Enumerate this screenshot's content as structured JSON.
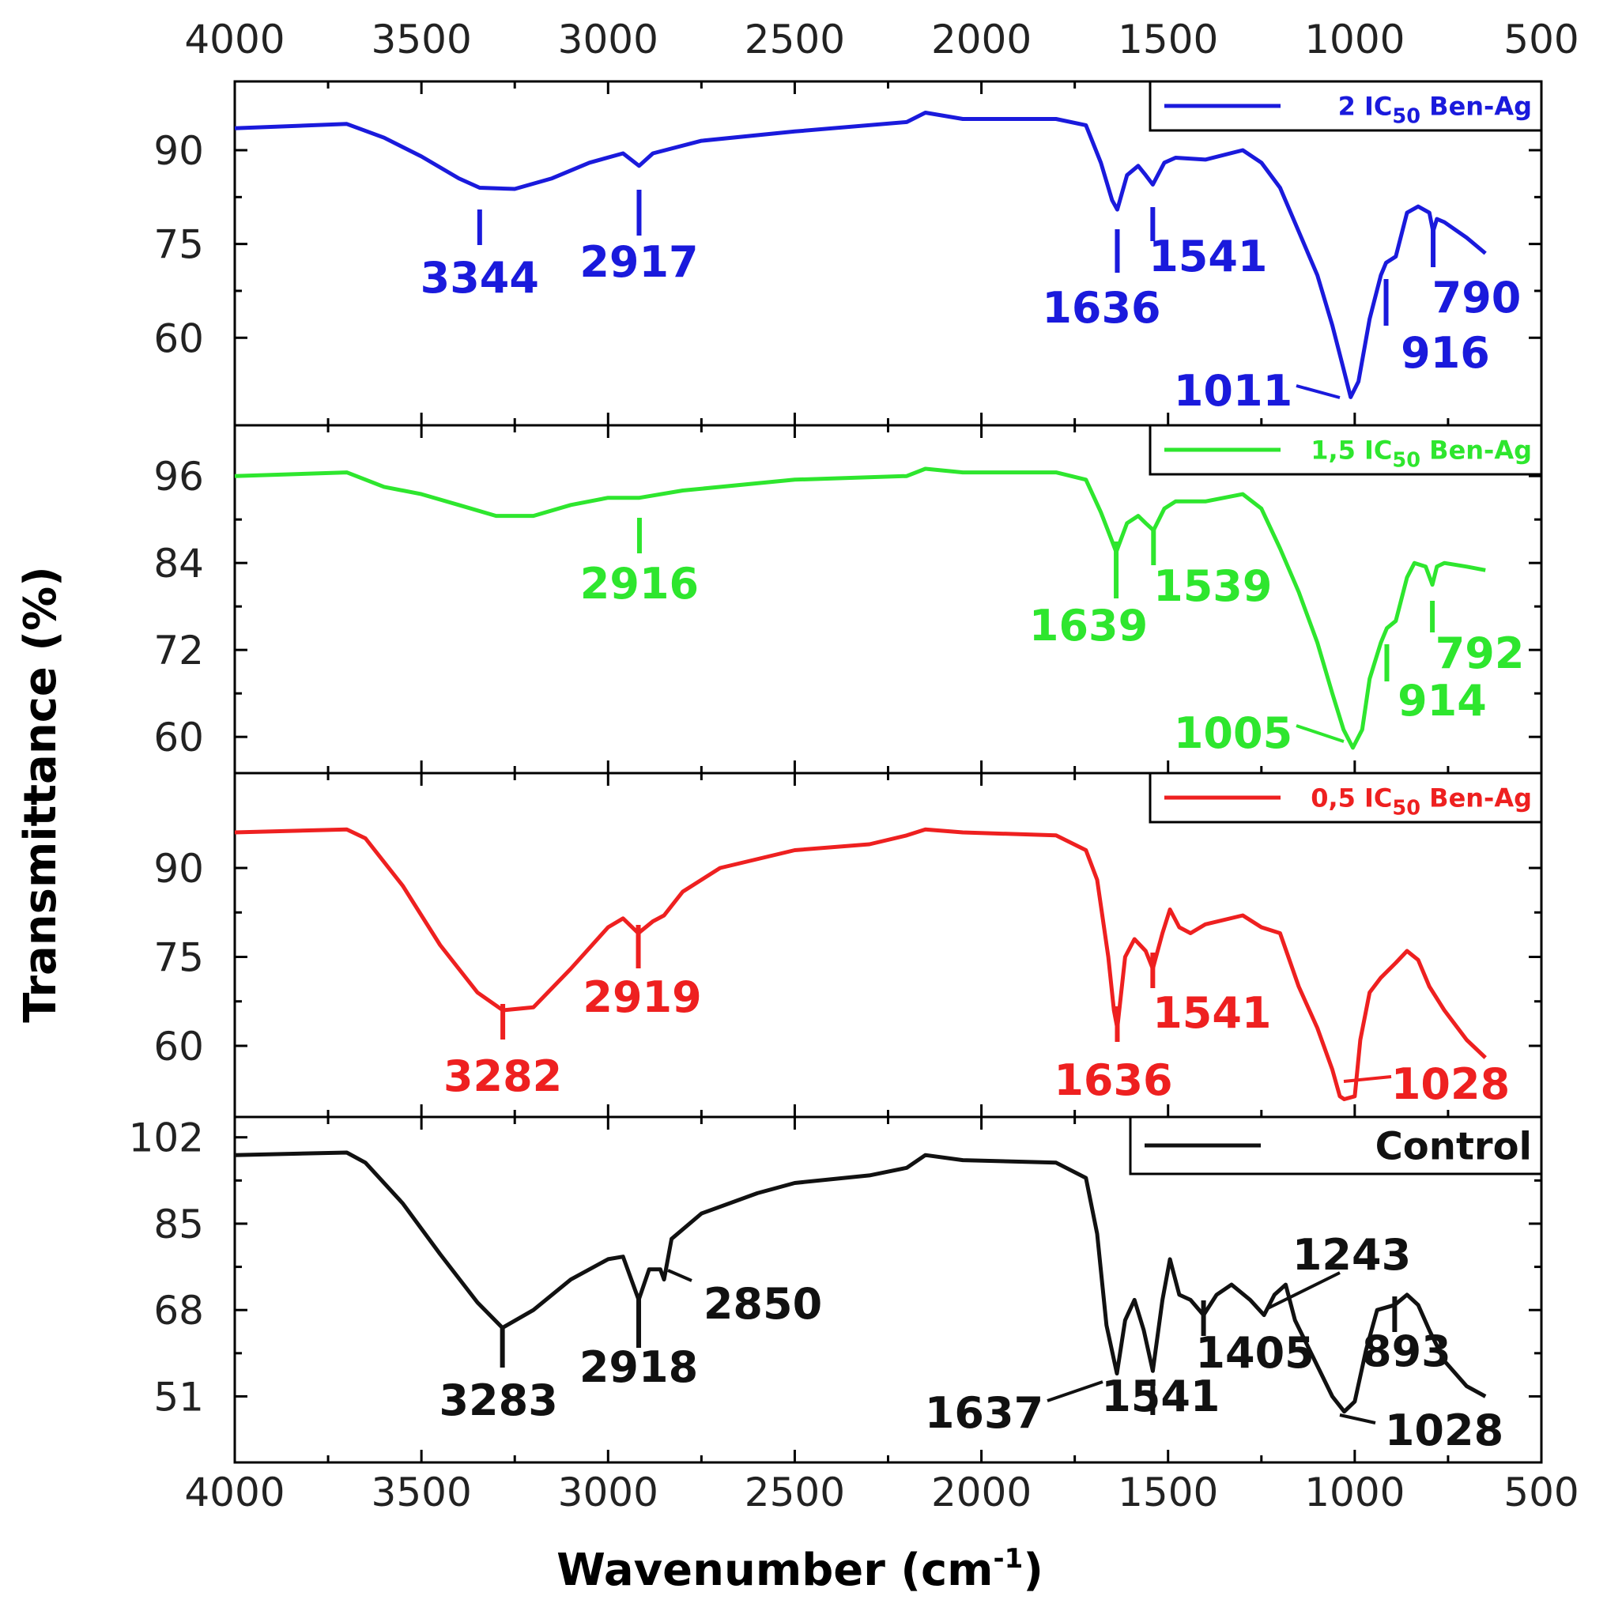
{
  "chart_data": {
    "type": "line",
    "layout": "stacked-panels",
    "xlabel": "Wavenumber (cm",
    "xlabel_superscript": "-1",
    "xlabel_suffix": ")",
    "ylabel": "Transmittance (%)",
    "xlim": [
      4000,
      500
    ],
    "xticks": [
      4000,
      3500,
      3000,
      2500,
      2000,
      1500,
      1000,
      500
    ],
    "panels": [
      {
        "name": "2 IC50 Ben-Ag",
        "legend": {
          "prefix": "2 IC",
          "sub": "50",
          "suffix": " Ben-Ag",
          "size": 32
        },
        "color": "#1a1adc",
        "ylim": [
          46,
          101
        ],
        "yticks": [
          60,
          75,
          90
        ],
        "points": [
          [
            4000,
            93.5
          ],
          [
            3700,
            94.2
          ],
          [
            3600,
            92
          ],
          [
            3500,
            89
          ],
          [
            3400,
            85.5
          ],
          [
            3344,
            84
          ],
          [
            3250,
            83.8
          ],
          [
            3150,
            85.5
          ],
          [
            3050,
            88
          ],
          [
            2960,
            89.5
          ],
          [
            2917,
            87.5
          ],
          [
            2880,
            89.5
          ],
          [
            2750,
            91.5
          ],
          [
            2500,
            93
          ],
          [
            2200,
            94.5
          ],
          [
            2150,
            96
          ],
          [
            2050,
            95
          ],
          [
            1800,
            95
          ],
          [
            1720,
            94
          ],
          [
            1680,
            88
          ],
          [
            1650,
            82
          ],
          [
            1636,
            80.5
          ],
          [
            1610,
            86
          ],
          [
            1580,
            87.5
          ],
          [
            1560,
            86
          ],
          [
            1541,
            84.5
          ],
          [
            1510,
            88
          ],
          [
            1480,
            88.8
          ],
          [
            1400,
            88.5
          ],
          [
            1300,
            90
          ],
          [
            1250,
            88
          ],
          [
            1200,
            84
          ],
          [
            1150,
            77
          ],
          [
            1100,
            70
          ],
          [
            1060,
            62
          ],
          [
            1030,
            55
          ],
          [
            1011,
            50.5
          ],
          [
            990,
            53
          ],
          [
            960,
            63
          ],
          [
            930,
            70
          ],
          [
            916,
            72
          ],
          [
            890,
            73
          ],
          [
            860,
            80
          ],
          [
            830,
            81
          ],
          [
            800,
            80
          ],
          [
            790,
            77
          ],
          [
            780,
            79
          ],
          [
            760,
            78.5
          ],
          [
            700,
            76
          ],
          [
            650,
            73.5
          ]
        ],
        "annotations": [
          {
            "label": "3344",
            "x": 3344
          },
          {
            "label": "2917",
            "x": 2917
          },
          {
            "label": "1636",
            "x": 1636
          },
          {
            "label": "1541",
            "x": 1541
          },
          {
            "label": "1011",
            "x": 1011
          },
          {
            "label": "916",
            "x": 916
          },
          {
            "label": "790",
            "x": 790
          }
        ]
      },
      {
        "name": "1,5 IC50 Ben-Ag",
        "legend": {
          "prefix": "1,5 IC",
          "sub": "50",
          "suffix": " Ben-Ag",
          "size": 32
        },
        "color": "#2ee62e",
        "ylim": [
          55,
          103
        ],
        "yticks": [
          60,
          72,
          84,
          96
        ],
        "points": [
          [
            4000,
            96
          ],
          [
            3700,
            96.5
          ],
          [
            3600,
            94.5
          ],
          [
            3500,
            93.5
          ],
          [
            3400,
            92
          ],
          [
            3300,
            90.5
          ],
          [
            3200,
            90.5
          ],
          [
            3100,
            92
          ],
          [
            3000,
            93
          ],
          [
            2916,
            93
          ],
          [
            2800,
            94
          ],
          [
            2500,
            95.5
          ],
          [
            2200,
            96
          ],
          [
            2150,
            97
          ],
          [
            2050,
            96.5
          ],
          [
            1800,
            96.5
          ],
          [
            1720,
            95.5
          ],
          [
            1680,
            91
          ],
          [
            1650,
            87
          ],
          [
            1639,
            85.5
          ],
          [
            1610,
            89.5
          ],
          [
            1580,
            90.5
          ],
          [
            1560,
            89.5
          ],
          [
            1539,
            88.5
          ],
          [
            1510,
            91.5
          ],
          [
            1480,
            92.5
          ],
          [
            1400,
            92.5
          ],
          [
            1300,
            93.5
          ],
          [
            1250,
            91.5
          ],
          [
            1200,
            86
          ],
          [
            1150,
            80
          ],
          [
            1100,
            73
          ],
          [
            1060,
            66
          ],
          [
            1030,
            61
          ],
          [
            1005,
            58.5
          ],
          [
            980,
            61
          ],
          [
            960,
            68
          ],
          [
            930,
            73
          ],
          [
            914,
            75
          ],
          [
            890,
            76
          ],
          [
            860,
            82
          ],
          [
            840,
            84
          ],
          [
            810,
            83.5
          ],
          [
            792,
            81
          ],
          [
            780,
            83.5
          ],
          [
            760,
            84
          ],
          [
            700,
            83.5
          ],
          [
            650,
            83
          ]
        ],
        "annotations": [
          {
            "label": "2916",
            "x": 2916
          },
          {
            "label": "1639",
            "x": 1639
          },
          {
            "label": "1539",
            "x": 1539
          },
          {
            "label": "1005",
            "x": 1005
          },
          {
            "label": "914",
            "x": 914
          },
          {
            "label": "792",
            "x": 792
          }
        ]
      },
      {
        "name": "0,5 IC50 Ben-Ag",
        "legend": {
          "prefix": "0,5 IC",
          "sub": "50",
          "suffix": " Ben-Ag",
          "size": 32
        },
        "color": "#ee2020",
        "ylim": [
          48,
          106
        ],
        "yticks": [
          60,
          75,
          90
        ],
        "points": [
          [
            4000,
            96
          ],
          [
            3700,
            96.5
          ],
          [
            3650,
            95
          ],
          [
            3550,
            87
          ],
          [
            3450,
            77
          ],
          [
            3350,
            69
          ],
          [
            3282,
            66
          ],
          [
            3200,
            66.5
          ],
          [
            3100,
            73
          ],
          [
            3000,
            80
          ],
          [
            2960,
            81.5
          ],
          [
            2919,
            79
          ],
          [
            2880,
            81
          ],
          [
            2850,
            82
          ],
          [
            2800,
            86
          ],
          [
            2700,
            90
          ],
          [
            2500,
            93
          ],
          [
            2300,
            94
          ],
          [
            2200,
            95.5
          ],
          [
            2150,
            96.5
          ],
          [
            2050,
            96
          ],
          [
            1800,
            95.5
          ],
          [
            1720,
            93
          ],
          [
            1690,
            88
          ],
          [
            1660,
            75
          ],
          [
            1645,
            66
          ],
          [
            1636,
            63
          ],
          [
            1615,
            75
          ],
          [
            1590,
            78
          ],
          [
            1560,
            76
          ],
          [
            1541,
            73
          ],
          [
            1515,
            79
          ],
          [
            1495,
            83
          ],
          [
            1470,
            80
          ],
          [
            1440,
            79
          ],
          [
            1400,
            80.5
          ],
          [
            1300,
            82
          ],
          [
            1250,
            80
          ],
          [
            1200,
            79
          ],
          [
            1150,
            70
          ],
          [
            1100,
            63
          ],
          [
            1060,
            56
          ],
          [
            1040,
            51.5
          ],
          [
            1028,
            51
          ],
          [
            1000,
            51.5
          ],
          [
            985,
            61
          ],
          [
            960,
            69
          ],
          [
            930,
            71.5
          ],
          [
            890,
            74
          ],
          [
            860,
            76
          ],
          [
            830,
            74.5
          ],
          [
            800,
            70
          ],
          [
            760,
            66
          ],
          [
            700,
            61
          ],
          [
            650,
            58
          ]
        ],
        "annotations": [
          {
            "label": "3282",
            "x": 3282
          },
          {
            "label": "2919",
            "x": 2919
          },
          {
            "label": "1636",
            "x": 1636
          },
          {
            "label": "1541",
            "x": 1541
          },
          {
            "label": "1028",
            "x": 1028
          }
        ]
      },
      {
        "name": "Control",
        "legend": {
          "prefix": "Control",
          "sub": "",
          "suffix": "",
          "size": 48
        },
        "color": "#111111",
        "ylim": [
          38,
          106
        ],
        "yticks": [
          51,
          68,
          85,
          102
        ],
        "points": [
          [
            4000,
            98.5
          ],
          [
            3700,
            99
          ],
          [
            3650,
            97
          ],
          [
            3550,
            89
          ],
          [
            3450,
            79
          ],
          [
            3350,
            69.5
          ],
          [
            3283,
            64.5
          ],
          [
            3200,
            68
          ],
          [
            3100,
            74
          ],
          [
            3000,
            78
          ],
          [
            2960,
            78.5
          ],
          [
            2918,
            70
          ],
          [
            2890,
            76
          ],
          [
            2860,
            76
          ],
          [
            2850,
            74
          ],
          [
            2830,
            82
          ],
          [
            2750,
            87
          ],
          [
            2600,
            91
          ],
          [
            2500,
            93
          ],
          [
            2300,
            94.5
          ],
          [
            2200,
            96
          ],
          [
            2150,
            98.5
          ],
          [
            2050,
            97.5
          ],
          [
            1800,
            97
          ],
          [
            1720,
            94
          ],
          [
            1690,
            83
          ],
          [
            1665,
            65
          ],
          [
            1637,
            55.5
          ],
          [
            1615,
            66
          ],
          [
            1590,
            70
          ],
          [
            1565,
            64
          ],
          [
            1541,
            56
          ],
          [
            1515,
            70
          ],
          [
            1495,
            78
          ],
          [
            1470,
            71
          ],
          [
            1440,
            70
          ],
          [
            1405,
            67
          ],
          [
            1370,
            71
          ],
          [
            1330,
            73
          ],
          [
            1280,
            70
          ],
          [
            1243,
            67
          ],
          [
            1215,
            71
          ],
          [
            1185,
            73
          ],
          [
            1160,
            66
          ],
          [
            1100,
            57
          ],
          [
            1060,
            51
          ],
          [
            1028,
            48
          ],
          [
            1000,
            50
          ],
          [
            970,
            60
          ],
          [
            940,
            68
          ],
          [
            893,
            69
          ],
          [
            860,
            71
          ],
          [
            830,
            69
          ],
          [
            800,
            64
          ],
          [
            760,
            58
          ],
          [
            700,
            53
          ],
          [
            650,
            51
          ]
        ],
        "annotations": [
          {
            "label": "3283",
            "x": 3283
          },
          {
            "label": "2918",
            "x": 2918
          },
          {
            "label": "2850",
            "x": 2850
          },
          {
            "label": "1637",
            "x": 1637
          },
          {
            "label": "1541",
            "x": 1541
          },
          {
            "label": "1405",
            "x": 1405
          },
          {
            "label": "1243",
            "x": 1243
          },
          {
            "label": "893",
            "x": 893
          },
          {
            "label": "1028",
            "x": 1028
          }
        ]
      }
    ]
  }
}
